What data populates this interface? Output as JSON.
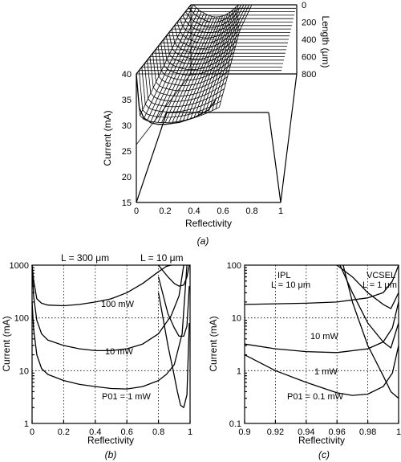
{
  "chart_data": [
    {
      "panel": "(a)",
      "type": "surface",
      "xlabel": "Reflectivity",
      "ylabel": "Current (mA)",
      "zlabel": "Length (μm)",
      "xticks": [
        "0",
        "0.2",
        "0.4",
        "0.6",
        "0.8",
        "1"
      ],
      "yticks": [
        "15",
        "20",
        "25",
        "30",
        "35",
        "40"
      ],
      "zticks": [
        "0",
        "200",
        "400",
        "600",
        "800"
      ],
      "xlim": [
        0,
        1
      ],
      "ylim": [
        15,
        40
      ],
      "zlim": [
        0,
        800
      ],
      "front_profile": {
        "x": [
          0.0,
          0.02,
          0.05,
          0.1,
          0.15,
          0.2,
          0.3,
          0.4,
          0.5,
          0.55
        ],
        "y": [
          40,
          33.5,
          31.5,
          30.5,
          30.2,
          30.2,
          30.6,
          31.5,
          33,
          35
        ]
      }
    },
    {
      "panel": "(b)",
      "type": "line",
      "xlabel": "Reflectivity",
      "ylabel": "Current (mA)",
      "xticks": [
        "0",
        "0.2",
        "0.4",
        "0.6",
        "0.8",
        "1"
      ],
      "yticks": [
        "1",
        "10",
        "100",
        "1000"
      ],
      "xlim": [
        0,
        1
      ],
      "ylim": [
        1,
        1000
      ],
      "yscale": "log",
      "grid": true,
      "annotations": [
        "L = 300 μm",
        "L = 10 μm"
      ],
      "series": [
        {
          "name": "100 mW",
          "x": [
            0.0,
            0.01,
            0.03,
            0.06,
            0.1,
            0.2,
            0.3,
            0.4,
            0.5,
            0.6,
            0.7,
            0.8,
            0.85,
            0.88
          ],
          "y": [
            1000,
            500,
            230,
            190,
            175,
            170,
            180,
            200,
            230,
            300,
            450,
            750,
            950,
            1000
          ]
        },
        {
          "name": "10 mW",
          "x": [
            0.0,
            0.01,
            0.03,
            0.06,
            0.1,
            0.2,
            0.3,
            0.4,
            0.5,
            0.6,
            0.7,
            0.8,
            0.88,
            0.93,
            0.96
          ],
          "y": [
            1000,
            250,
            90,
            50,
            38,
            30,
            26,
            24,
            24,
            26,
            32,
            50,
            110,
            260,
            1000
          ]
        },
        {
          "name": "P01 = 1 mW",
          "x": [
            0.0,
            0.01,
            0.03,
            0.06,
            0.1,
            0.2,
            0.3,
            0.4,
            0.5,
            0.6,
            0.7,
            0.8,
            0.85,
            0.9,
            0.95,
            0.98
          ],
          "y": [
            200,
            60,
            20,
            11,
            8.5,
            6.5,
            5.5,
            5.0,
            4.6,
            4.5,
            5.0,
            6.5,
            8.5,
            13,
            50,
            1000
          ]
        },
        {
          "name": "L = 10 μm, 100 mW",
          "x": [
            0.8,
            0.86,
            0.9,
            0.93,
            0.96,
            0.98,
            0.995
          ],
          "y": [
            1000,
            600,
            450,
            400,
            420,
            600,
            1000
          ]
        },
        {
          "name": "L = 10 μm, 10 mW",
          "x": [
            0.8,
            0.86,
            0.9,
            0.93,
            0.96,
            0.98,
            0.995
          ],
          "y": [
            600,
            120,
            65,
            45,
            45,
            70,
            400
          ]
        },
        {
          "name": "L = 10 μm, 1 mW",
          "x": [
            0.8,
            0.86,
            0.9,
            0.92,
            0.94,
            0.96,
            0.98,
            0.995
          ],
          "y": [
            300,
            30,
            8,
            4,
            2.2,
            2.0,
            3.5,
            80
          ]
        }
      ],
      "labels": [
        "100 mW",
        "10 mW",
        "P01 = 1 mW"
      ]
    },
    {
      "panel": "(c)",
      "type": "line",
      "xlabel": "Reflectivity",
      "ylabel": "Current (mA)",
      "xticks": [
        "0.9",
        "0.92",
        "0.94",
        "0.96",
        "0.98",
        "1"
      ],
      "yticks": [
        "0.1",
        "1",
        "10",
        "100"
      ],
      "xlim": [
        0.9,
        1.0
      ],
      "ylim": [
        0.1,
        100
      ],
      "yscale": "log",
      "grid": true,
      "annotations": [
        "IPL",
        "L = 10 μm",
        "VCSEL",
        "L = 1 μm"
      ],
      "series": [
        {
          "name": "IPL 10 mW",
          "x": [
            0.9,
            0.92,
            0.94,
            0.96,
            0.98,
            0.99,
            0.996,
            1.0
          ],
          "y": [
            18,
            18.5,
            19,
            20,
            24,
            30,
            50,
            100
          ]
        },
        {
          "name": "IPL 1 mW",
          "x": [
            0.9,
            0.92,
            0.94,
            0.96,
            0.98,
            0.99,
            0.996,
            1.0
          ],
          "y": [
            3.2,
            2.6,
            2.3,
            2.2,
            2.6,
            3.5,
            6.5,
            20
          ]
        },
        {
          "name": "IPL P01 = 0.1 mW",
          "x": [
            0.9,
            0.92,
            0.94,
            0.96,
            0.97,
            0.98,
            0.99,
            0.996,
            1.0
          ],
          "y": [
            2.0,
            1.0,
            0.6,
            0.38,
            0.34,
            0.36,
            0.5,
            0.9,
            3
          ]
        },
        {
          "name": "VCSEL 10 mW",
          "x": [
            0.96,
            0.97,
            0.98,
            0.99,
            0.995,
            1.0
          ],
          "y": [
            100,
            60,
            30,
            18,
            15,
            30
          ]
        },
        {
          "name": "VCSEL 1 mW",
          "x": [
            0.962,
            0.97,
            0.98,
            0.99,
            0.995,
            1.0
          ],
          "y": [
            100,
            30,
            8,
            3.5,
            2.7,
            8
          ]
        },
        {
          "name": "VCSEL 0.1 mW",
          "x": [
            0.964,
            0.97,
            0.98,
            0.99,
            0.995,
            1.0
          ],
          "y": [
            100,
            20,
            3,
            0.8,
            0.4,
            0.3
          ]
        }
      ],
      "labels": [
        "10 mW",
        "1 mW",
        "P01 = 0.1 mW"
      ]
    }
  ],
  "captions": {
    "a": "(a)",
    "b": "(b)",
    "c": "(c)"
  }
}
